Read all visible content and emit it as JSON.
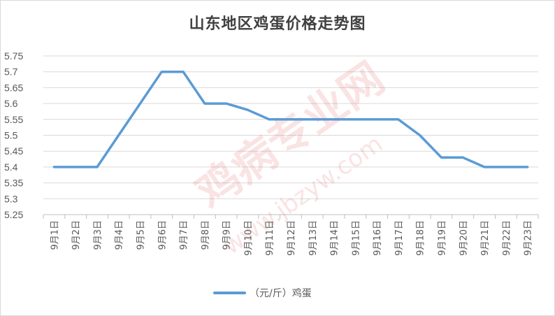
{
  "chart_data": {
    "type": "line",
    "title": "山东地区鸡蛋价格走势图",
    "categories": [
      "9月1日",
      "9月2日",
      "9月3日",
      "9月4日",
      "9月5日",
      "9月6日",
      "9月7日",
      "9月8日",
      "9月9日",
      "9月10日",
      "9月11日",
      "9月12日",
      "9月13日",
      "9月14日",
      "9月15日",
      "9月16日",
      "9月17日",
      "9月18日",
      "9月19日",
      "9月20日",
      "9月21日",
      "9月22日",
      "9月23日"
    ],
    "series": [
      {
        "name": "（元/斤）鸡蛋",
        "color": "#5b9bd5",
        "values": [
          5.4,
          5.4,
          5.4,
          5.5,
          5.6,
          5.7,
          5.7,
          5.6,
          5.6,
          5.58,
          5.55,
          5.55,
          5.55,
          5.55,
          5.55,
          5.55,
          5.55,
          5.5,
          5.43,
          5.43,
          5.4,
          5.4,
          5.4
        ]
      }
    ],
    "ylim": [
      5.25,
      5.75
    ],
    "yticks": [
      5.25,
      5.3,
      5.35,
      5.4,
      5.45,
      5.5,
      5.55,
      5.6,
      5.65,
      5.7,
      5.75
    ],
    "ytick_labels": [
      "5.25",
      "5.3",
      "5.35",
      "5.4",
      "5.45",
      "5.5",
      "5.55",
      "5.6",
      "5.65",
      "5.7",
      "5.75"
    ],
    "grid": true,
    "legend_position": "bottom"
  },
  "watermark": {
    "text": "鸡病专业网",
    "url": "www.jbzyw.com",
    "color": "#e03030"
  }
}
